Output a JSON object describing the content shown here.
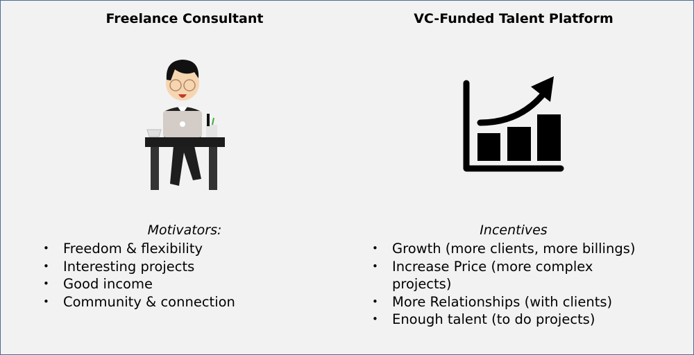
{
  "left": {
    "title": "Freelance Consultant",
    "subtitle": "Motivators:",
    "items": [
      "Freedom & flexibility",
      "Interesting projects",
      "Good income",
      "Community & connection"
    ],
    "icon": "freelancer-at-desk-illustration"
  },
  "right": {
    "title": "VC-Funded Talent Platform",
    "subtitle": "Incentives",
    "items": [
      "Growth (more clients, more billings)",
      "Increase Price (more complex projects)",
      "More Relationships (with clients)",
      "Enough talent (to do projects)"
    ],
    "icon": "growth-chart-icon"
  },
  "colors": {
    "background": "#f2f2f2",
    "border": "#4a6a9a"
  }
}
